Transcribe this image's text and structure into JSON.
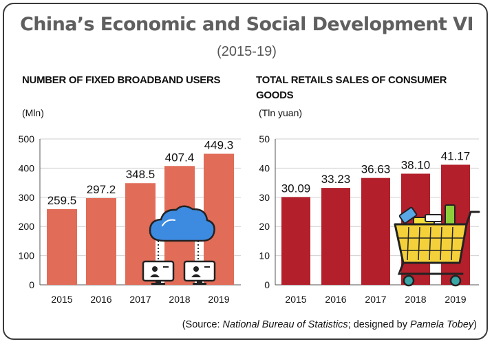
{
  "title": "China’s Economic and Social Development VI",
  "subtitle": "(2015-19)",
  "source": {
    "prefix": "(Source: ",
    "org": "National Bureau of Statistics",
    "mid": "; designed by ",
    "designer": "Pamela Tobey",
    "suffix": ")"
  },
  "colors": {
    "broadband_bar": "#e16c58",
    "retail_bar": "#b31f2a",
    "grid": "#cfcfcf"
  },
  "icons": [
    "cloud-computer-icon",
    "shopping-cart-icon"
  ],
  "chart_data": [
    {
      "type": "bar",
      "title": "NUMBER OF FIXED BROADBAND USERS",
      "ylabel": "(Mln)",
      "categories": [
        "2015",
        "2016",
        "2017",
        "2018",
        "2019"
      ],
      "values": [
        259.5,
        297.2,
        348.5,
        407.4,
        449.3
      ],
      "value_labels": [
        "259.5",
        "297.2",
        "348.5",
        "407.4",
        "449.3"
      ],
      "yticks": [
        0,
        100,
        200,
        300,
        400,
        500
      ],
      "ylim": [
        0,
        500
      ],
      "grid": true
    },
    {
      "type": "bar",
      "title": "TOTAL RETAILS SALES OF CONSUMER GOODS",
      "ylabel": "(Tln yuan)",
      "categories": [
        "2015",
        "2016",
        "2017",
        "2018",
        "2019"
      ],
      "values": [
        30.09,
        33.23,
        36.63,
        38.1,
        41.17
      ],
      "value_labels": [
        "30.09",
        "33.23",
        "36.63",
        "38.10",
        "41.17"
      ],
      "yticks": [
        0,
        10,
        20,
        30,
        40,
        50
      ],
      "ylim": [
        0,
        50
      ],
      "grid": true
    }
  ]
}
